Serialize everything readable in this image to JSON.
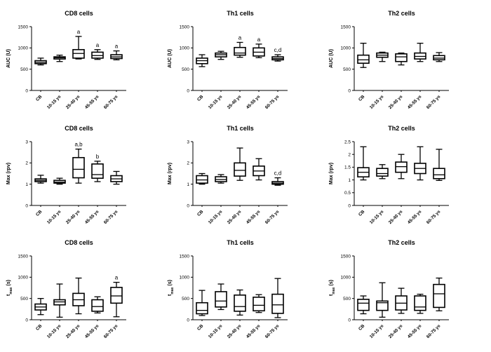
{
  "chart_data": [
    {
      "type": "box",
      "title": "CD8 cells",
      "ylabel": "AUC (U)",
      "ylim": [
        0,
        1500
      ],
      "yticks": [
        0,
        500,
        1000,
        1500
      ],
      "categories": [
        "CB",
        "10-15 ys",
        "25-40 ys",
        "45-55 ys",
        "60-75 ys"
      ],
      "boxes": [
        [
          600,
          630,
          660,
          700,
          760
        ],
        [
          680,
          740,
          770,
          790,
          830
        ],
        [
          740,
          760,
          870,
          960,
          1270
        ],
        [
          730,
          760,
          820,
          900,
          960
        ],
        [
          720,
          750,
          790,
          840,
          930
        ]
      ],
      "annotations": [
        "",
        "",
        "a",
        "a",
        "a"
      ]
    },
    {
      "type": "box",
      "title": "Th1 cells",
      "ylabel": "AUC (U)",
      "ylim": [
        0,
        1500
      ],
      "yticks": [
        0,
        500,
        1000,
        1500
      ],
      "categories": [
        "CB",
        "10-15 ys",
        "25-40 ys",
        "45-55 ys",
        "60-75 ys"
      ],
      "boxes": [
        [
          560,
          630,
          700,
          760,
          840
        ],
        [
          730,
          790,
          840,
          880,
          920
        ],
        [
          780,
          830,
          880,
          1010,
          1130
        ],
        [
          770,
          810,
          900,
          1000,
          1090
        ],
        [
          690,
          720,
          750,
          790,
          840
        ]
      ],
      "annotations": [
        "",
        "",
        "a",
        "a",
        "c,d"
      ]
    },
    {
      "type": "box",
      "title": "Th2 cells",
      "ylabel": "AUC (U)",
      "ylim": [
        0,
        1500
      ],
      "yticks": [
        0,
        500,
        1000,
        1500
      ],
      "categories": [
        "CB",
        "10-15 ys",
        "25-40 ys",
        "45-55 ys",
        "60-75 ys"
      ],
      "boxes": [
        [
          540,
          640,
          720,
          830,
          1110
        ],
        [
          680,
          780,
          830,
          880,
          900
        ],
        [
          600,
          680,
          790,
          860,
          880
        ],
        [
          680,
          740,
          800,
          880,
          1110
        ],
        [
          680,
          720,
          760,
          820,
          890
        ]
      ],
      "annotations": [
        "",
        "",
        "",
        "",
        ""
      ]
    },
    {
      "type": "box",
      "title": "CD8 cells",
      "ylabel": "Max (rpv)",
      "ylim": [
        0,
        3
      ],
      "yticks": [
        0,
        1,
        2,
        3
      ],
      "categories": [
        "CB",
        "10-15 ys",
        "25-40 ys",
        "45-55 ys",
        "60-75 ys"
      ],
      "boxes": [
        [
          1.05,
          1.12,
          1.18,
          1.25,
          1.42
        ],
        [
          1.0,
          1.05,
          1.1,
          1.18,
          1.28
        ],
        [
          1.05,
          1.3,
          1.7,
          2.25,
          2.65
        ],
        [
          1.12,
          1.28,
          1.45,
          1.95,
          2.08
        ],
        [
          1.0,
          1.12,
          1.25,
          1.4,
          1.6
        ]
      ],
      "annotations": [
        "",
        "",
        "a,b",
        "b",
        ""
      ]
    },
    {
      "type": "box",
      "title": "Th1 cells",
      "ylabel": "Max (rpv)",
      "ylim": [
        0,
        3
      ],
      "yticks": [
        0,
        1,
        2,
        3
      ],
      "categories": [
        "CB",
        "10-15 ys",
        "25-40 ys",
        "45-55 ys",
        "60-75 ys"
      ],
      "boxes": [
        [
          1.0,
          1.05,
          1.2,
          1.4,
          1.5
        ],
        [
          1.05,
          1.12,
          1.22,
          1.35,
          1.45
        ],
        [
          1.18,
          1.38,
          1.65,
          2.0,
          2.7
        ],
        [
          1.2,
          1.4,
          1.62,
          1.85,
          2.2
        ],
        [
          0.95,
          1.0,
          1.05,
          1.12,
          1.3
        ]
      ],
      "annotations": [
        "",
        "",
        "",
        "",
        "c,d"
      ]
    },
    {
      "type": "box",
      "title": "Th2 cells",
      "ylabel": "Max (rpv)",
      "ylim": [
        0,
        2.5
      ],
      "yticks": [
        0.0,
        0.5,
        1.0,
        1.5,
        2.0,
        2.5
      ],
      "categories": [
        "CB",
        "10-15 ys",
        "25-40 ys",
        "45-55 ys",
        "60-75 ys"
      ],
      "boxes": [
        [
          1.0,
          1.12,
          1.3,
          1.48,
          2.3
        ],
        [
          1.05,
          1.15,
          1.25,
          1.45,
          1.6
        ],
        [
          1.05,
          1.3,
          1.52,
          1.7,
          2.0
        ],
        [
          1.0,
          1.25,
          1.45,
          1.65,
          2.3
        ],
        [
          0.98,
          1.05,
          1.2,
          1.45,
          2.2
        ]
      ],
      "annotations": [
        "",
        "",
        "",
        "",
        ""
      ]
    },
    {
      "type": "box",
      "title": "CD8 cells",
      "ylabel": "t_max (s)",
      "ylim": [
        0,
        1500
      ],
      "yticks": [
        0,
        500,
        1000,
        1500
      ],
      "categories": [
        "CB",
        "10-15 ys",
        "25-40 ys",
        "45-55 ys",
        "60-75 ys"
      ],
      "boxes": [
        [
          120,
          230,
          300,
          370,
          500
        ],
        [
          60,
          350,
          420,
          470,
          840
        ],
        [
          140,
          330,
          470,
          620,
          980
        ],
        [
          160,
          200,
          310,
          470,
          540
        ],
        [
          70,
          390,
          560,
          760,
          880
        ]
      ],
      "annotations": [
        "",
        "",
        "",
        "",
        "a"
      ]
    },
    {
      "type": "box",
      "title": "Th1 cells",
      "ylabel": "t_max (s)",
      "ylim": [
        0,
        1500
      ],
      "yticks": [
        0,
        500,
        1000,
        1500
      ],
      "categories": [
        "CB",
        "10-15 ys",
        "25-40 ys",
        "45-55 ys",
        "60-75 ys"
      ],
      "boxes": [
        [
          100,
          140,
          220,
          400,
          690
        ],
        [
          240,
          300,
          440,
          660,
          840
        ],
        [
          110,
          200,
          310,
          580,
          700
        ],
        [
          170,
          210,
          340,
          530,
          590
        ],
        [
          50,
          150,
          350,
          600,
          970
        ]
      ],
      "annotations": [
        "",
        "",
        "",
        "",
        ""
      ]
    },
    {
      "type": "box",
      "title": "Th2 cells",
      "ylabel": "t_max (s)",
      "ylim": [
        0,
        1500
      ],
      "yticks": [
        0,
        500,
        1000,
        1500
      ],
      "categories": [
        "CB",
        "10-15 ys",
        "25-40 ys",
        "45-55 ys",
        "60-75 ys"
      ],
      "boxes": [
        [
          140,
          220,
          390,
          480,
          560
        ],
        [
          60,
          220,
          400,
          440,
          870
        ],
        [
          150,
          230,
          390,
          560,
          740
        ],
        [
          150,
          220,
          300,
          560,
          600
        ],
        [
          210,
          290,
          610,
          830,
          980
        ]
      ],
      "annotations": [
        "",
        "",
        "",
        "",
        ""
      ]
    }
  ]
}
